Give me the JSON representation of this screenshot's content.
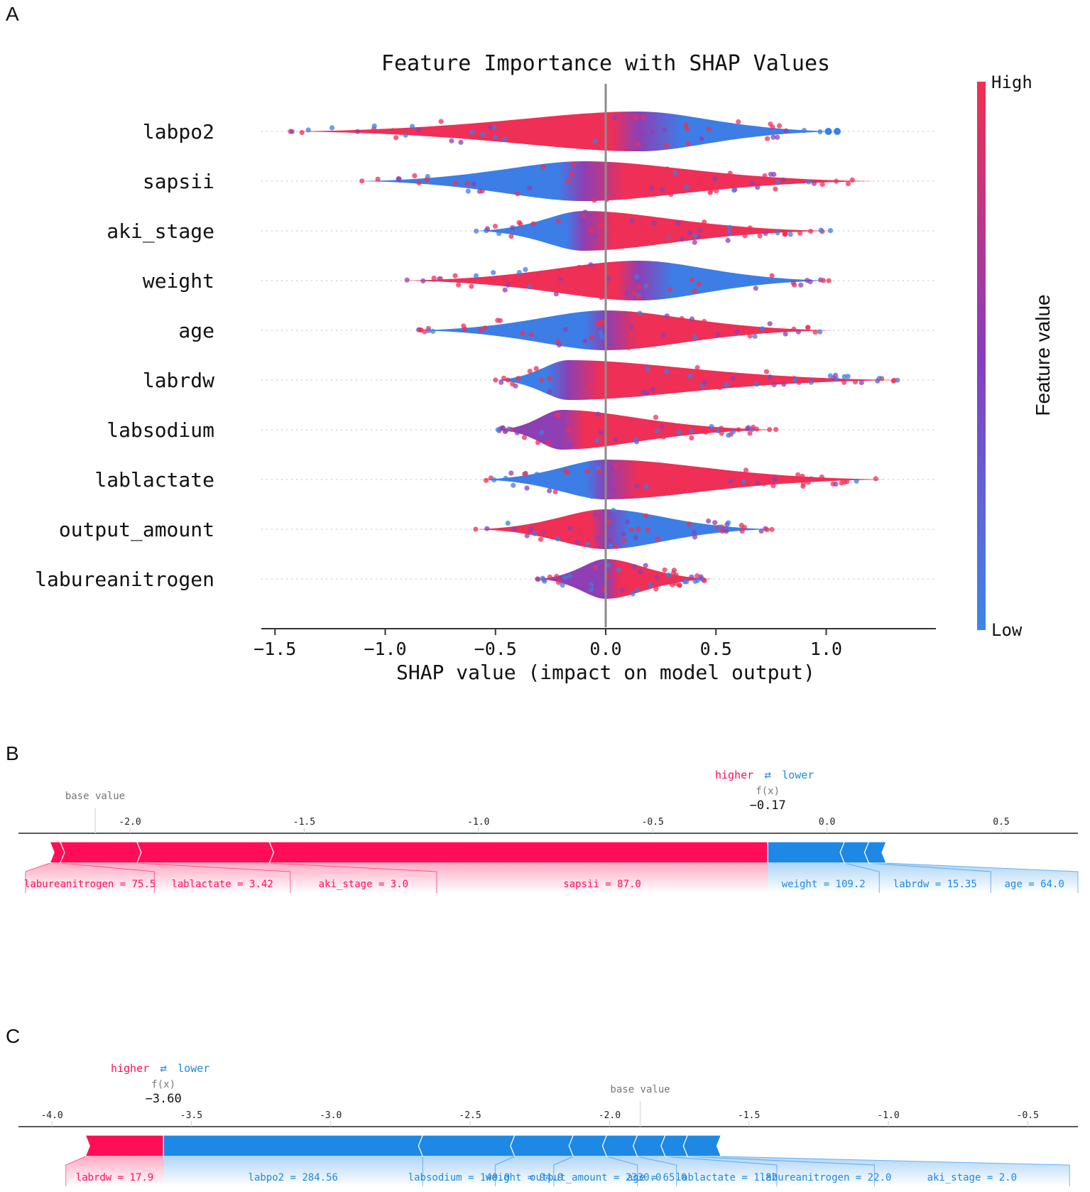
{
  "panels": {
    "a": "A",
    "b": "B",
    "c": "C"
  },
  "colors": {
    "high": "#ff0d57",
    "low": "#1e88e5",
    "dot_high": "#ef2f56",
    "dot_mid": "#8e3fb4",
    "dot_low": "#3c7ee6"
  },
  "chart_data": [
    {
      "type": "scatter",
      "subtype": "shap-beeswarm",
      "title": "Feature Importance with SHAP Values",
      "xlabel": "SHAP value (impact on model output)",
      "xlim": [
        -1.55,
        1.45
      ],
      "xticks": [
        -1.5,
        -1.0,
        -0.5,
        0.0,
        0.5,
        1.0
      ],
      "xtick_labels": [
        "−1.5",
        "−1.0",
        "−0.5",
        "0.0",
        "0.5",
        "1.0"
      ],
      "colorbar": {
        "label": "Feature value",
        "high_label": "High",
        "low_label": "Low"
      },
      "features": [
        {
          "name": "labpo2",
          "min": -1.43,
          "max": 1.05,
          "peak": 0.15,
          "width": 28,
          "neg_color": "high",
          "pos_color": "low",
          "outliers": [
            1.01,
            1.05
          ]
        },
        {
          "name": "sapsii",
          "min": -1.12,
          "max": 1.22,
          "peak": -0.1,
          "width": 28,
          "neg_color": "low",
          "pos_color": "high",
          "outliers": []
        },
        {
          "name": "aki_stage",
          "min": -0.59,
          "max": 1.03,
          "peak": -0.1,
          "width": 28,
          "neg_color": "low",
          "pos_color": "high",
          "outliers": []
        },
        {
          "name": "weight",
          "min": -0.92,
          "max": 1.02,
          "peak": 0.15,
          "width": 28,
          "neg_color": "high",
          "pos_color": "low",
          "outliers": []
        },
        {
          "name": "age",
          "min": -0.86,
          "max": 1.03,
          "peak": 0.0,
          "width": 28,
          "neg_color": "low",
          "pos_color": "high",
          "outliers": []
        },
        {
          "name": "labrdw",
          "min": -0.5,
          "max": 1.35,
          "peak": -0.17,
          "width": 28,
          "neg_color": "low",
          "pos_color": "high",
          "outliers": []
        },
        {
          "name": "labsodium",
          "min": -0.49,
          "max": 0.78,
          "peak": -0.2,
          "width": 28,
          "neg_color": "mid",
          "pos_color": "high",
          "outliers": []
        },
        {
          "name": "lablactate",
          "min": -0.57,
          "max": 1.27,
          "peak": 0.0,
          "width": 28,
          "neg_color": "low",
          "pos_color": "high",
          "outliers": []
        },
        {
          "name": "output_amount",
          "min": -0.59,
          "max": 0.76,
          "peak": 0.0,
          "width": 28,
          "neg_color": "high",
          "pos_color": "low",
          "outliers": []
        },
        {
          "name": "labureanitrogen",
          "min": -0.31,
          "max": 0.49,
          "peak": 0.0,
          "width": 28,
          "neg_color": "mid",
          "pos_color": "high",
          "outliers": []
        }
      ]
    },
    {
      "type": "bar",
      "subtype": "shap-force-plot",
      "axis_min": -2.32,
      "axis_max": 0.72,
      "ticks": [
        -2.0,
        -1.5,
        -1.0,
        -0.5,
        0.0,
        0.5
      ],
      "tick_labels": [
        "-2.0",
        "-1.5",
        "-1.0",
        "-0.5",
        "0.0",
        "0.5"
      ],
      "base_value": -2.1,
      "base_label": "base value",
      "fx_label": "f(x)",
      "fx_value": -0.17,
      "fx_text": "−0.17",
      "higher_label": "higher",
      "lower_label": "lower",
      "positive": [
        {
          "label": "labureanitrogen = 75.5",
          "start": -2.23,
          "end": -2.2
        },
        {
          "label": "lablactate = 3.42",
          "start": -2.2,
          "end": -1.98
        },
        {
          "label": "aki_stage = 3.0",
          "start": -1.98,
          "end": -1.6
        },
        {
          "label": "sapsii = 87.0",
          "start": -1.6,
          "end": -0.17
        }
      ],
      "negative": [
        {
          "label": "weight = 109.2",
          "start": -0.17,
          "end": 0.05
        },
        {
          "label": "labrdw = 15.35",
          "start": 0.05,
          "end": 0.12
        },
        {
          "label": "age = 64.0",
          "start": 0.12,
          "end": 0.17
        }
      ],
      "positive_label_bounds": [
        [
          -2.3,
          -1.93
        ],
        [
          -1.93,
          -1.54
        ],
        [
          -1.54,
          -1.12
        ],
        [
          -1.12,
          -0.17
        ]
      ],
      "negative_label_bounds": [
        [
          -0.17,
          0.15
        ],
        [
          0.15,
          0.47
        ],
        [
          0.47,
          0.72
        ]
      ]
    },
    {
      "type": "bar",
      "subtype": "shap-force-plot",
      "axis_min": -4.12,
      "axis_max": -0.32,
      "ticks": [
        -4.0,
        -3.5,
        -3.0,
        -2.5,
        -2.0,
        -1.5,
        -1.0,
        -0.5
      ],
      "tick_labels": [
        "-4.0",
        "-3.5",
        "-3.0",
        "-2.5",
        "-2.0",
        "-1.5",
        "-1.0",
        "-0.5"
      ],
      "base_value": -1.89,
      "base_label": "base value",
      "fx_label": "f(x)",
      "fx_value": -3.6,
      "fx_text": "−3.60",
      "higher_label": "higher",
      "lower_label": "lower",
      "positive": [
        {
          "label": "labrdw = 17.9",
          "start": -3.88,
          "end": -3.6
        }
      ],
      "negative": [
        {
          "label": "labpo2 = 284.56",
          "start": -3.6,
          "end": -2.67
        },
        {
          "label": "labsodium = 140.0",
          "start": -2.67,
          "end": -2.34
        },
        {
          "label": "weight = 94.9",
          "start": -2.34,
          "end": -2.13
        },
        {
          "label": "output_amount = 2330.0",
          "start": -2.13,
          "end": -2.01
        },
        {
          "label": "age = 65.0",
          "start": -2.01,
          "end": -1.9
        },
        {
          "label": "lablactate = 1.82",
          "start": -1.9,
          "end": -1.8
        },
        {
          "label": "labureanitrogen = 22.0",
          "start": -1.8,
          "end": -1.72
        },
        {
          "label": "aki_stage = 2.0",
          "start": -1.72,
          "end": -1.6
        }
      ],
      "positive_label_bounds": [
        [
          -3.95,
          -3.6
        ]
      ],
      "negative_label_bounds": [
        [
          -3.6,
          -2.67
        ],
        [
          -2.67,
          -2.41
        ],
        [
          -2.41,
          -2.2
        ],
        [
          -2.2,
          -1.9
        ],
        [
          -1.9,
          -1.76
        ],
        [
          -1.76,
          -1.4
        ],
        [
          -1.4,
          -1.05
        ],
        [
          -1.05,
          -0.35
        ]
      ]
    }
  ]
}
